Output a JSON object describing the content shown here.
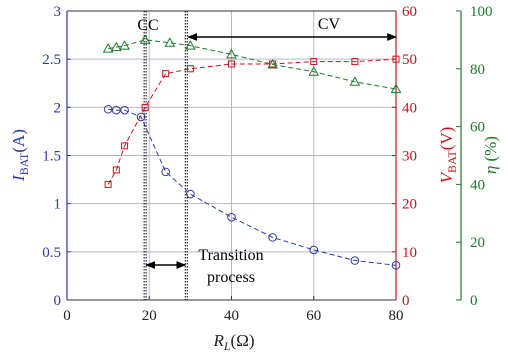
{
  "chart_data": {
    "type": "line",
    "x_axis": {
      "label_main": "R",
      "label_sub": "L",
      "label_unit": "(Ω)",
      "range": [
        0,
        80
      ],
      "ticks": [
        "0",
        "20",
        "40",
        "60",
        "80"
      ]
    },
    "y_left": {
      "label_main": "I",
      "label_sub": "BAT",
      "label_unit": "(A)",
      "range": [
        0,
        3
      ],
      "ticks": [
        "0",
        "0.5",
        "1",
        "1.5",
        "2",
        "2.5",
        "3"
      ],
      "color": "#2d3aa0"
    },
    "y_right_1": {
      "label_main": "V",
      "label_sub": "BAT",
      "label_unit": "(V)",
      "range": [
        0,
        60
      ],
      "ticks": [
        "0",
        "10",
        "20",
        "30",
        "40",
        "50",
        "60"
      ],
      "color": "#c8141e"
    },
    "y_right_2": {
      "label_main": "η",
      "label_unit": "(%)",
      "range": [
        0,
        100
      ],
      "ticks": [
        "0",
        "20",
        "40",
        "60",
        "80",
        "100"
      ],
      "color": "#1f7a2e"
    },
    "grid": true,
    "series": [
      {
        "axis": "left",
        "marker": "circle",
        "color": "#2d3aa0",
        "x": [
          10,
          12,
          14,
          18,
          24,
          30,
          40,
          50,
          60,
          70,
          80
        ],
        "y": [
          1.98,
          1.97,
          1.97,
          1.9,
          1.33,
          1.1,
          0.86,
          0.65,
          0.52,
          0.41,
          0.36
        ]
      },
      {
        "axis": "right1",
        "marker": "square",
        "color": "#c8141e",
        "x": [
          10,
          12,
          14,
          19,
          24,
          30,
          40,
          50,
          60,
          70,
          80
        ],
        "y": [
          24,
          27,
          32,
          40,
          47,
          48,
          49,
          49,
          49.5,
          49.5,
          50
        ]
      },
      {
        "axis": "right2",
        "marker": "triangle",
        "color": "#1f7a2e",
        "x": [
          10,
          12,
          14,
          19,
          25,
          30,
          40,
          50,
          60,
          70,
          80
        ],
        "y": [
          87,
          87.5,
          88,
          90,
          89,
          88,
          85,
          81.5,
          79,
          75.5,
          73
        ]
      }
    ],
    "vlines_x": [
      19,
      29
    ],
    "annotations": {
      "cc": "CC",
      "cv": "CV",
      "transition_line1": "Transition",
      "transition_line2": "process"
    }
  }
}
